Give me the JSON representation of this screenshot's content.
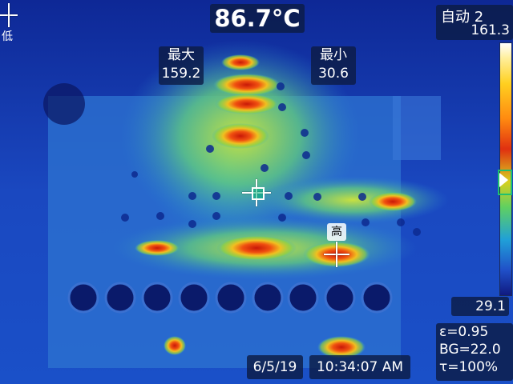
{
  "readout": {
    "center_temp": "86.7°C",
    "mode_label": "自动 2",
    "scale_high": "161.3",
    "scale_low": "29.1"
  },
  "markers": {
    "max_label": "最大",
    "max_value": "159.2",
    "min_label": "最小",
    "min_value": "30.6",
    "hot_spot_label": "高",
    "cold_spot_label": "低"
  },
  "params": {
    "emissivity": "ε=0.95",
    "background": "BG=22.0",
    "transmission": "τ=100%"
  },
  "footer": {
    "date": "6/5/19",
    "time": "10:34:07 AM"
  },
  "colors": {
    "panel_bg": "#0c1c46",
    "hot": "#e03010",
    "cold": "#101a80"
  },
  "icons": {
    "hot_marker": "crosshair-icon",
    "cold_marker": "crosshair-icon",
    "center_spot": "spot-meter-icon"
  }
}
